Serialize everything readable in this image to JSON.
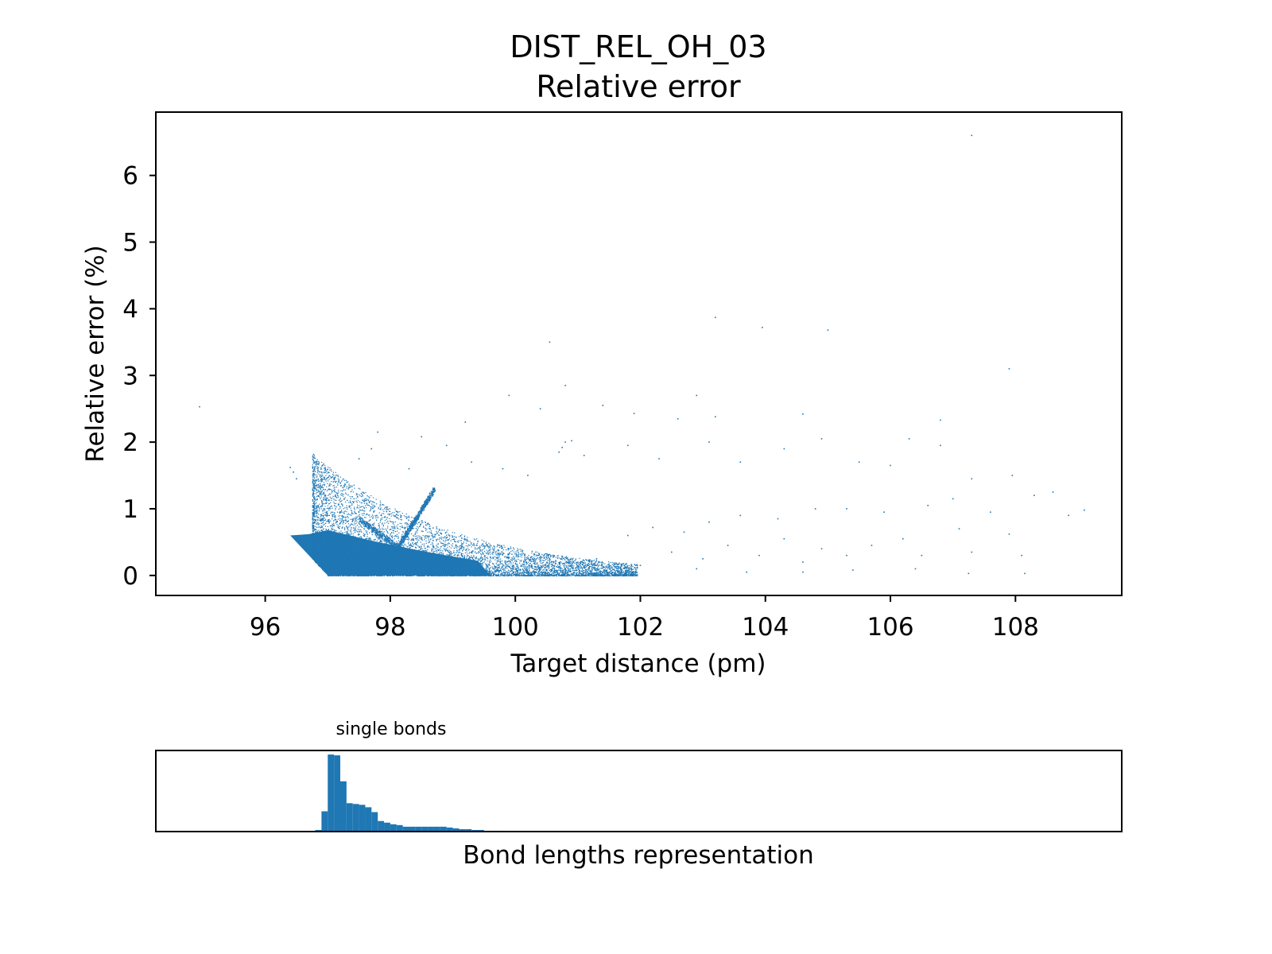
{
  "chart_data": [
    {
      "type": "scatter",
      "title": "DIST_REL_OH_03",
      "subtitle": "Relative error",
      "xlabel": "Target distance (pm)",
      "ylabel": "Relative error (%)",
      "xlim": [
        94.25,
        109.7
      ],
      "ylim": [
        -0.3,
        6.95
      ],
      "xticks": [
        96,
        98,
        100,
        102,
        104,
        106,
        108
      ],
      "yticks": [
        0,
        1,
        2,
        3,
        4,
        5,
        6
      ],
      "grid": false,
      "color": "#1f77b4",
      "points": [
        [
          94.95,
          2.53
        ],
        [
          107.3,
          6.6
        ],
        [
          103.2,
          3.87
        ],
        [
          103.95,
          3.72
        ],
        [
          100.55,
          3.5
        ],
        [
          97.8,
          2.15
        ],
        [
          98.5,
          2.08
        ],
        [
          99.2,
          2.3
        ],
        [
          100.4,
          2.5
        ],
        [
          101.4,
          2.55
        ],
        [
          101.9,
          2.43
        ],
        [
          102.6,
          2.35
        ],
        [
          103.2,
          2.38
        ],
        [
          104.6,
          2.42
        ],
        [
          106.8,
          2.33
        ],
        [
          107.9,
          3.1
        ],
        [
          105.0,
          3.68
        ],
        [
          102.9,
          2.7
        ],
        [
          100.8,
          2.85
        ],
        [
          99.9,
          2.7
        ],
        [
          96.4,
          1.62
        ],
        [
          96.45,
          1.55
        ],
        [
          96.5,
          1.45
        ],
        [
          97.5,
          1.75
        ],
        [
          99.3,
          1.7
        ],
        [
          100.2,
          1.5
        ],
        [
          101.1,
          1.8
        ],
        [
          101.8,
          1.95
        ],
        [
          102.3,
          1.75
        ],
        [
          103.1,
          2.0
        ],
        [
          103.6,
          1.7
        ],
        [
          104.3,
          1.9
        ],
        [
          104.9,
          2.05
        ],
        [
          105.5,
          1.7
        ],
        [
          106.0,
          1.65
        ],
        [
          106.3,
          2.05
        ],
        [
          106.8,
          1.95
        ],
        [
          107.3,
          1.45
        ],
        [
          107.95,
          1.5
        ],
        [
          108.3,
          1.2
        ],
        [
          108.6,
          1.25
        ],
        [
          109.1,
          0.98
        ],
        [
          108.85,
          0.9
        ],
        [
          107.6,
          0.95
        ],
        [
          107.0,
          1.15
        ],
        [
          106.6,
          1.05
        ],
        [
          105.9,
          0.95
        ],
        [
          105.3,
          1.0
        ],
        [
          104.8,
          1.0
        ],
        [
          104.2,
          0.85
        ],
        [
          103.6,
          0.9
        ],
        [
          103.1,
          0.8
        ],
        [
          102.7,
          0.65
        ],
        [
          102.2,
          0.72
        ],
        [
          101.8,
          0.6
        ],
        [
          108.1,
          0.3
        ],
        [
          107.9,
          0.62
        ],
        [
          107.3,
          0.35
        ],
        [
          107.1,
          0.7
        ],
        [
          106.5,
          0.3
        ],
        [
          106.2,
          0.55
        ],
        [
          105.7,
          0.45
        ],
        [
          105.3,
          0.3
        ],
        [
          104.9,
          0.4
        ],
        [
          104.6,
          0.2
        ],
        [
          104.3,
          0.55
        ],
        [
          103.9,
          0.3
        ],
        [
          103.4,
          0.45
        ],
        [
          103.0,
          0.25
        ],
        [
          102.5,
          0.35
        ],
        [
          102.0,
          0.15
        ],
        [
          101.7,
          0.05
        ],
        [
          101.3,
          0.25
        ],
        [
          104.6,
          0.05
        ],
        [
          105.4,
          0.08
        ],
        [
          106.4,
          0.1
        ],
        [
          107.25,
          0.03
        ],
        [
          108.15,
          0.03
        ],
        [
          103.7,
          0.05
        ],
        [
          102.9,
          0.1
        ],
        [
          100.8,
          2.0
        ],
        [
          100.75,
          1.92
        ],
        [
          100.9,
          2.02
        ],
        [
          100.7,
          1.85
        ],
        [
          99.8,
          1.6
        ],
        [
          98.9,
          1.95
        ],
        [
          98.3,
          1.6
        ],
        [
          97.1,
          1.45
        ],
        [
          96.8,
          1.3
        ],
        [
          97.7,
          1.9
        ]
      ]
    },
    {
      "type": "bar",
      "title": "single bonds",
      "xlabel": "Bond lengths representation",
      "xlim": [
        94.25,
        109.7
      ],
      "bin_width": 0.1,
      "color": "#1f77b4",
      "bins": [
        [
          96.7,
          0.01
        ],
        [
          96.8,
          0.02
        ],
        [
          96.9,
          0.25
        ],
        [
          97.0,
          0.95
        ],
        [
          97.1,
          0.94
        ],
        [
          97.2,
          0.62
        ],
        [
          97.3,
          0.35
        ],
        [
          97.4,
          0.34
        ],
        [
          97.5,
          0.33
        ],
        [
          97.6,
          0.3
        ],
        [
          97.7,
          0.24
        ],
        [
          97.8,
          0.13
        ],
        [
          97.9,
          0.11
        ],
        [
          98.0,
          0.09
        ],
        [
          98.1,
          0.08
        ],
        [
          98.2,
          0.06
        ],
        [
          98.3,
          0.06
        ],
        [
          98.4,
          0.06
        ],
        [
          98.5,
          0.06
        ],
        [
          98.6,
          0.06
        ],
        [
          98.7,
          0.06
        ],
        [
          98.8,
          0.06
        ],
        [
          98.9,
          0.05
        ],
        [
          99.0,
          0.04
        ],
        [
          99.1,
          0.03
        ],
        [
          99.2,
          0.03
        ],
        [
          99.3,
          0.02
        ],
        [
          99.4,
          0.02
        ],
        [
          99.5,
          0.01
        ],
        [
          99.6,
          0.01
        ],
        [
          99.7,
          0.01
        ],
        [
          99.8,
          0.005
        ],
        [
          99.9,
          0.005
        ]
      ]
    }
  ]
}
